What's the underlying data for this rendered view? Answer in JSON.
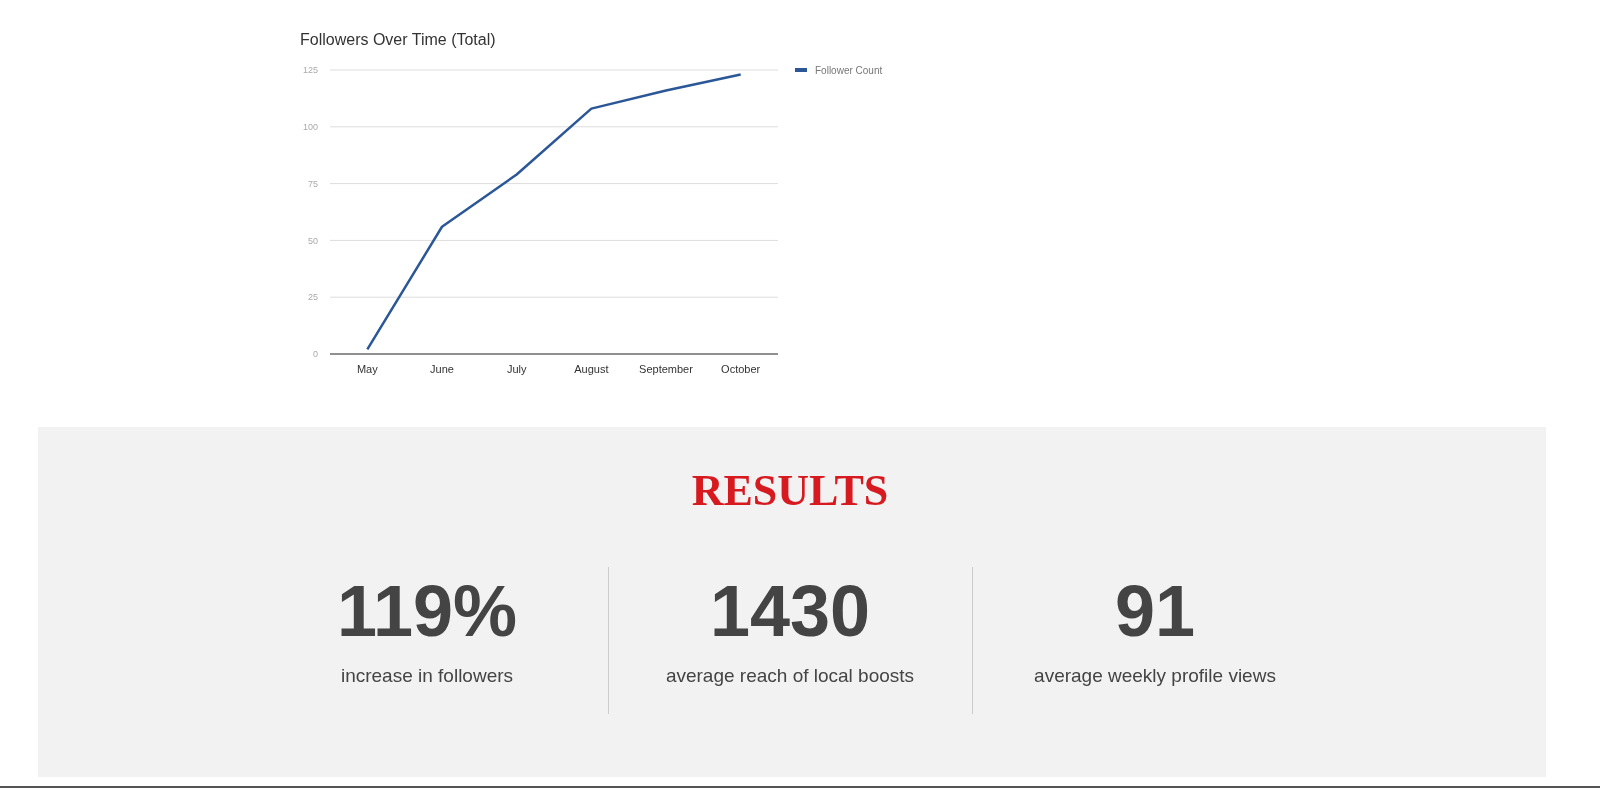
{
  "chart_data": [
    {
      "type": "line",
      "title": "Followers Over Time (Total)",
      "categories": [
        "May",
        "June",
        "July",
        "August",
        "September",
        "October"
      ],
      "series": [
        {
          "name": "Follower Count",
          "color": "#2b5797",
          "values": [
            2,
            56,
            79,
            108,
            116,
            123
          ]
        }
      ],
      "ylim": [
        0,
        125
      ],
      "yticks": [
        0,
        25,
        50,
        75,
        100,
        125
      ],
      "grid": "y",
      "legend": "top right"
    },
    {
      "type": "other",
      "title": "RESULTS",
      "annotations": [
        "119%",
        "increase in followers",
        "1430",
        "average reach of local boosts",
        "91",
        "average weekly profile views"
      ]
    }
  ]
}
